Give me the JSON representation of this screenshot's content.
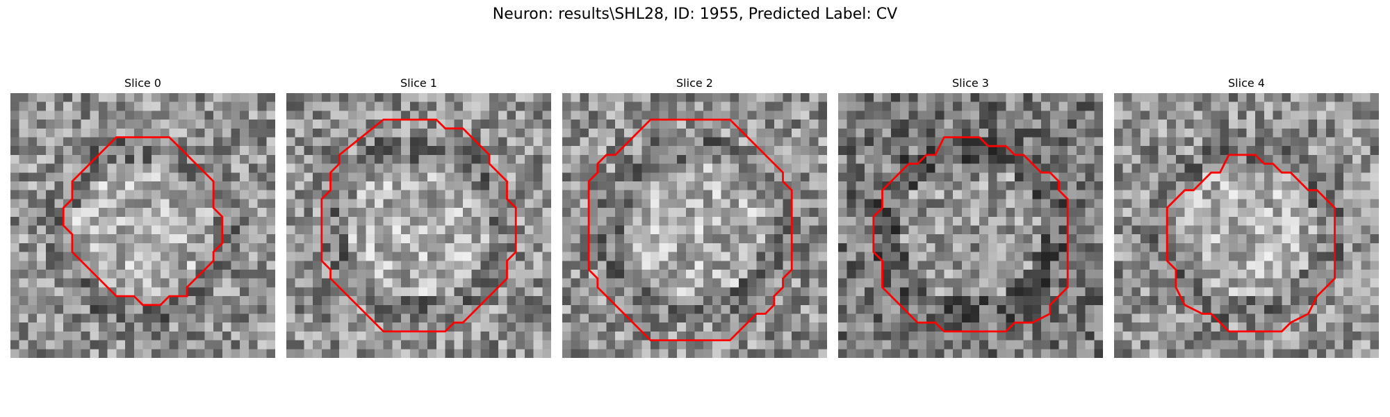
{
  "figure": {
    "title": "Neuron: results\\SHL28, ID: 1955, Predicted Label: CV",
    "outline_color": "#ff0000",
    "colormap": "gray"
  },
  "panels": [
    {
      "title": "Slice 0",
      "seed": 11,
      "outline": [
        [
          12,
          5
        ],
        [
          18,
          5
        ],
        [
          23,
          10
        ],
        [
          23,
          13
        ],
        [
          24,
          14
        ],
        [
          24,
          17
        ],
        [
          23,
          18
        ],
        [
          23,
          19
        ],
        [
          20,
          22
        ],
        [
          20,
          23
        ],
        [
          18,
          23
        ],
        [
          17,
          24
        ],
        [
          15,
          24
        ],
        [
          14,
          23
        ],
        [
          12,
          23
        ],
        [
          7,
          18
        ],
        [
          7,
          16
        ],
        [
          6,
          15
        ],
        [
          6,
          13
        ],
        [
          7,
          12
        ],
        [
          7,
          10
        ]
      ]
    },
    {
      "title": "Slice 1",
      "seed": 23,
      "outline": [
        [
          11,
          3
        ],
        [
          17,
          3
        ],
        [
          18,
          4
        ],
        [
          20,
          4
        ],
        [
          23,
          7
        ],
        [
          23,
          8
        ],
        [
          25,
          10
        ],
        [
          25,
          12
        ],
        [
          26,
          13
        ],
        [
          26,
          18
        ],
        [
          25,
          19
        ],
        [
          25,
          21
        ],
        [
          20,
          26
        ],
        [
          19,
          26
        ],
        [
          18,
          27
        ],
        [
          11,
          27
        ],
        [
          5,
          21
        ],
        [
          5,
          20
        ],
        [
          4,
          19
        ],
        [
          4,
          12
        ],
        [
          5,
          11
        ],
        [
          5,
          9
        ],
        [
          6,
          8
        ],
        [
          6,
          7
        ]
      ]
    },
    {
      "title": "Slice 2",
      "seed": 37,
      "outline": [
        [
          10,
          3
        ],
        [
          19,
          3
        ],
        [
          25,
          9
        ],
        [
          25,
          10
        ],
        [
          26,
          11
        ],
        [
          26,
          20
        ],
        [
          25,
          21
        ],
        [
          25,
          22
        ],
        [
          24,
          23
        ],
        [
          24,
          24
        ],
        [
          23,
          25
        ],
        [
          22,
          25
        ],
        [
          19,
          28
        ],
        [
          10,
          28
        ],
        [
          4,
          22
        ],
        [
          4,
          21
        ],
        [
          3,
          20
        ],
        [
          3,
          10
        ],
        [
          4,
          9
        ],
        [
          4,
          8
        ],
        [
          5,
          7
        ],
        [
          6,
          7
        ]
      ]
    },
    {
      "title": "Slice 3",
      "seed": 51,
      "outline": [
        [
          12,
          5
        ],
        [
          16,
          5
        ],
        [
          17,
          6
        ],
        [
          19,
          6
        ],
        [
          20,
          7
        ],
        [
          21,
          7
        ],
        [
          23,
          9
        ],
        [
          24,
          9
        ],
        [
          25,
          10
        ],
        [
          25,
          11
        ],
        [
          26,
          12
        ],
        [
          26,
          22
        ],
        [
          25,
          23
        ],
        [
          24,
          24
        ],
        [
          24,
          25
        ],
        [
          22,
          26
        ],
        [
          20,
          26
        ],
        [
          19,
          27
        ],
        [
          12,
          27
        ],
        [
          11,
          26
        ],
        [
          9,
          26
        ],
        [
          5,
          22
        ],
        [
          5,
          19
        ],
        [
          4,
          18
        ],
        [
          4,
          14
        ],
        [
          5,
          13
        ],
        [
          5,
          11
        ],
        [
          8,
          8
        ],
        [
          9,
          8
        ],
        [
          10,
          7
        ],
        [
          11,
          7
        ]
      ]
    },
    {
      "title": "Slice 4",
      "seed": 67,
      "outline": [
        [
          13,
          7
        ],
        [
          16,
          7
        ],
        [
          17,
          8
        ],
        [
          18,
          8
        ],
        [
          19,
          9
        ],
        [
          20,
          9
        ],
        [
          22,
          11
        ],
        [
          23,
          11
        ],
        [
          25,
          13
        ],
        [
          25,
          21
        ],
        [
          24,
          22
        ],
        [
          23,
          23
        ],
        [
          22,
          25
        ],
        [
          20,
          26
        ],
        [
          19,
          27
        ],
        [
          13,
          27
        ],
        [
          11,
          25
        ],
        [
          10,
          25
        ],
        [
          8,
          24
        ],
        [
          7,
          22
        ],
        [
          7,
          20
        ],
        [
          6,
          19
        ],
        [
          6,
          13
        ],
        [
          8,
          11
        ],
        [
          9,
          11
        ],
        [
          10,
          10
        ],
        [
          11,
          9
        ],
        [
          12,
          9
        ]
      ]
    }
  ]
}
